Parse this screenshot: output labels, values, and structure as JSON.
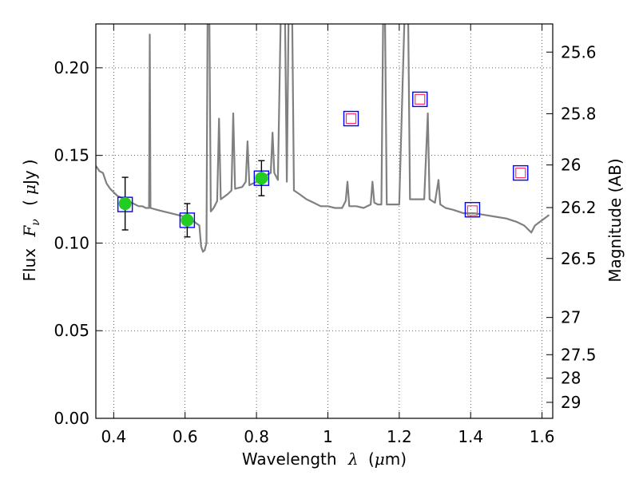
{
  "chart_data": {
    "type": "scatter",
    "xlabel_prefix": "Wavelength",
    "xlabel_symbol": "λ",
    "xlabel_unit_open": "(",
    "xlabel_unit_mu": "μ",
    "xlabel_unit_rest": "m)",
    "ylabel_prefix": "Flux",
    "ylabel_symbol": "F",
    "ylabel_sub": "ν",
    "ylabel_unit_open": "(",
    "ylabel_unit_mu": "μ",
    "ylabel_unit_rest": "Jy",
    "ylabel_unit_close": ")",
    "y2label": "Magnitude (AB)",
    "xlim": [
      0.35,
      1.63
    ],
    "ylim": [
      0.0,
      0.225
    ],
    "grid": true,
    "grid_style": "dotted",
    "x_ticks": [
      {
        "value": 0.4,
        "label": "0.4"
      },
      {
        "value": 0.6,
        "label": "0.6"
      },
      {
        "value": 0.8,
        "label": "0.8"
      },
      {
        "value": 1.0,
        "label": "1"
      },
      {
        "value": 1.2,
        "label": "1.2"
      },
      {
        "value": 1.4,
        "label": "1.4"
      },
      {
        "value": 1.6,
        "label": "1.6"
      }
    ],
    "y_ticks": [
      {
        "value": 0.0,
        "label": "0.00"
      },
      {
        "value": 0.05,
        "label": "0.05"
      },
      {
        "value": 0.1,
        "label": "0.10"
      },
      {
        "value": 0.15,
        "label": "0.15"
      },
      {
        "value": 0.2,
        "label": "0.20"
      }
    ],
    "y2_ticks": [
      {
        "mag": 25.6,
        "label": "25.6"
      },
      {
        "mag": 25.8,
        "label": "25.8"
      },
      {
        "mag": 26.0,
        "label": "26"
      },
      {
        "mag": 26.2,
        "label": "26.2"
      },
      {
        "mag": 26.5,
        "label": "26.5"
      },
      {
        "mag": 27.0,
        "label": "27"
      },
      {
        "mag": 27.5,
        "label": "27.5"
      },
      {
        "mag": 28.0,
        "label": "28"
      },
      {
        "mag": 29.0,
        "label": "29"
      }
    ],
    "colors": {
      "sed_line": "#808080",
      "observed_point": "#22cc22",
      "error_bar": "#000000",
      "model_box": "#0000ff",
      "upper_box": "#ff3366"
    },
    "series": [
      {
        "kind": "sed_model",
        "points": [
          [
            0.35,
            0.144
          ],
          [
            0.36,
            0.141
          ],
          [
            0.37,
            0.14
          ],
          [
            0.38,
            0.134
          ],
          [
            0.39,
            0.131
          ],
          [
            0.4,
            0.129
          ],
          [
            0.41,
            0.127
          ],
          [
            0.42,
            0.126
          ],
          [
            0.43,
            0.125
          ],
          [
            0.44,
            0.124
          ],
          [
            0.45,
            0.123
          ],
          [
            0.46,
            0.122
          ],
          [
            0.47,
            0.121
          ],
          [
            0.48,
            0.121
          ],
          [
            0.49,
            0.12
          ],
          [
            0.499,
            0.12
          ],
          [
            0.501,
            0.219
          ],
          [
            0.503,
            0.12
          ],
          [
            0.52,
            0.119
          ],
          [
            0.54,
            0.118
          ],
          [
            0.56,
            0.117
          ],
          [
            0.58,
            0.116
          ],
          [
            0.6,
            0.115
          ],
          [
            0.62,
            0.113
          ],
          [
            0.64,
            0.11
          ],
          [
            0.645,
            0.098
          ],
          [
            0.65,
            0.095
          ],
          [
            0.655,
            0.096
          ],
          [
            0.66,
            0.1
          ],
          [
            0.663,
            0.23
          ],
          [
            0.668,
            0.23
          ],
          [
            0.672,
            0.118
          ],
          [
            0.68,
            0.12
          ],
          [
            0.69,
            0.124
          ],
          [
            0.695,
            0.171
          ],
          [
            0.7,
            0.125
          ],
          [
            0.72,
            0.128
          ],
          [
            0.73,
            0.13
          ],
          [
            0.735,
            0.174
          ],
          [
            0.74,
            0.131
          ],
          [
            0.76,
            0.132
          ],
          [
            0.77,
            0.135
          ],
          [
            0.775,
            0.158
          ],
          [
            0.78,
            0.133
          ],
          [
            0.8,
            0.135
          ],
          [
            0.82,
            0.138
          ],
          [
            0.84,
            0.14
          ],
          [
            0.845,
            0.163
          ],
          [
            0.85,
            0.14
          ],
          [
            0.86,
            0.136
          ],
          [
            0.868,
            0.23
          ],
          [
            0.88,
            0.23
          ],
          [
            0.885,
            0.135
          ],
          [
            0.89,
            0.23
          ],
          [
            0.9,
            0.23
          ],
          [
            0.905,
            0.13
          ],
          [
            0.92,
            0.128
          ],
          [
            0.94,
            0.125
          ],
          [
            0.96,
            0.123
          ],
          [
            0.98,
            0.121
          ],
          [
            1.0,
            0.121
          ],
          [
            1.02,
            0.12
          ],
          [
            1.04,
            0.12
          ],
          [
            1.05,
            0.124
          ],
          [
            1.055,
            0.135
          ],
          [
            1.06,
            0.121
          ],
          [
            1.08,
            0.121
          ],
          [
            1.1,
            0.12
          ],
          [
            1.12,
            0.122
          ],
          [
            1.125,
            0.135
          ],
          [
            1.13,
            0.123
          ],
          [
            1.14,
            0.122
          ],
          [
            1.15,
            0.122
          ],
          [
            1.155,
            0.23
          ],
          [
            1.16,
            0.23
          ],
          [
            1.165,
            0.122
          ],
          [
            1.18,
            0.122
          ],
          [
            1.2,
            0.122
          ],
          [
            1.215,
            0.23
          ],
          [
            1.225,
            0.23
          ],
          [
            1.23,
            0.125
          ],
          [
            1.24,
            0.125
          ],
          [
            1.26,
            0.125
          ],
          [
            1.27,
            0.125
          ],
          [
            1.275,
            0.15
          ],
          [
            1.28,
            0.174
          ],
          [
            1.285,
            0.125
          ],
          [
            1.3,
            0.123
          ],
          [
            1.31,
            0.136
          ],
          [
            1.315,
            0.122
          ],
          [
            1.33,
            0.12
          ],
          [
            1.35,
            0.119
          ],
          [
            1.38,
            0.117
          ],
          [
            1.41,
            0.117
          ],
          [
            1.44,
            0.116
          ],
          [
            1.47,
            0.115
          ],
          [
            1.5,
            0.114
          ],
          [
            1.53,
            0.112
          ],
          [
            1.55,
            0.11
          ],
          [
            1.57,
            0.106
          ],
          [
            1.58,
            0.11
          ],
          [
            1.6,
            0.113
          ],
          [
            1.62,
            0.116
          ]
        ]
      },
      {
        "kind": "observed",
        "points": [
          {
            "x": 0.432,
            "y": 0.1225,
            "err": 0.015
          },
          {
            "x": 0.606,
            "y": 0.113,
            "err": 0.0095
          },
          {
            "x": 0.814,
            "y": 0.137,
            "err": 0.01
          }
        ]
      },
      {
        "kind": "model_synthetic",
        "points": [
          {
            "x": 0.432,
            "y": 0.122
          },
          {
            "x": 0.606,
            "y": 0.113
          },
          {
            "x": 0.814,
            "y": 0.137
          },
          {
            "x": 1.065,
            "y": 0.171
          },
          {
            "x": 1.258,
            "y": 0.182
          },
          {
            "x": 1.405,
            "y": 0.119
          },
          {
            "x": 1.54,
            "y": 0.14
          }
        ]
      },
      {
        "kind": "unobserved",
        "points": [
          {
            "x": 1.065,
            "y": 0.171
          },
          {
            "x": 1.258,
            "y": 0.182
          },
          {
            "x": 1.405,
            "y": 0.1185
          },
          {
            "x": 1.54,
            "y": 0.14
          }
        ]
      }
    ]
  }
}
